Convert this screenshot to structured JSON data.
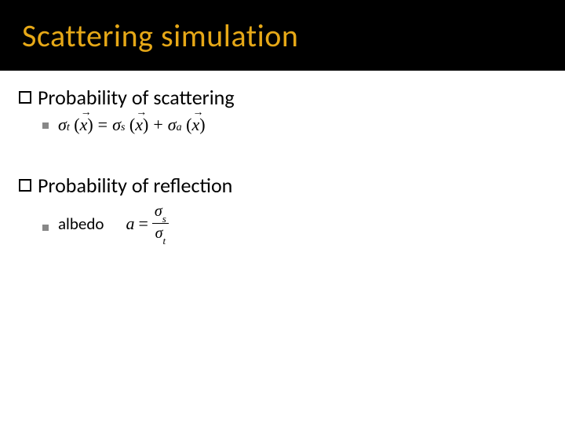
{
  "slide": {
    "title": "Scattering simulation",
    "title_color": "#e6a817",
    "title_bg": "#000000",
    "body_bg": "#ffffff",
    "text_color": "#000000",
    "bullet2_color": "#888888",
    "sections": [
      {
        "heading": "Probability of scattering",
        "formula": {
          "type": "equation",
          "lhs": {
            "sym": "σ",
            "sub": "t",
            "arg": "x",
            "arg_vector": true
          },
          "rhs": [
            {
              "sym": "σ",
              "sub": "s",
              "arg": "x",
              "arg_vector": true
            },
            {
              "op": "+"
            },
            {
              "sym": "σ",
              "sub": "a",
              "arg": "x",
              "arg_vector": true
            }
          ]
        }
      },
      {
        "heading": "Probability of reflection",
        "sublabel": "albedo",
        "formula": {
          "type": "fraction_eq",
          "lhs": "a",
          "num": {
            "sym": "σ",
            "sub": "s"
          },
          "den": {
            "sym": "σ",
            "sub": "t"
          }
        }
      }
    ],
    "fonts": {
      "title_size_pt": 32,
      "body_size_pt": 20,
      "formula_family": "Times New Roman"
    }
  }
}
